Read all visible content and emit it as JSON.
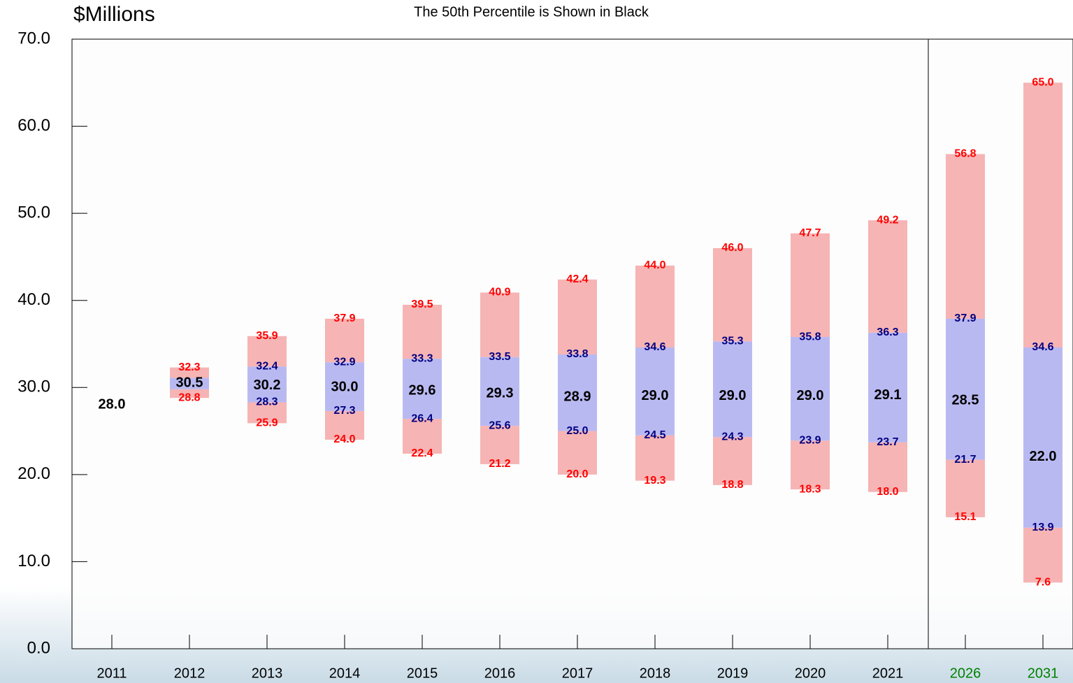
{
  "chart_data": {
    "type": "percentile_band",
    "subtitle": "The 50th Percentile is Shown in Black",
    "y_label": "$Millions",
    "categories": [
      "2011",
      "2012",
      "2013",
      "2014",
      "2015",
      "2016",
      "2017",
      "2018",
      "2019",
      "2020",
      "2021",
      "2026",
      "2031"
    ],
    "category_colors": [
      "#000000",
      "#000000",
      "#000000",
      "#000000",
      "#000000",
      "#000000",
      "#000000",
      "#000000",
      "#000000",
      "#000000",
      "#000000",
      "#008000",
      "#008000"
    ],
    "ylim": [
      0,
      70
    ],
    "yticks": [
      {
        "value": 0,
        "label": "0.0"
      },
      {
        "value": 10,
        "label": "10.0"
      },
      {
        "value": 20,
        "label": "20.0"
      },
      {
        "value": 30,
        "label": "30.0"
      },
      {
        "value": 40,
        "label": "40.0"
      },
      {
        "value": 50,
        "label": "50.0"
      },
      {
        "value": 60,
        "label": "60.0"
      },
      {
        "value": 70,
        "label": "70.0"
      }
    ],
    "series": [
      {
        "color": "#ff0000",
        "band_color": "#f6b4b4",
        "values": [
          null,
          28.8,
          25.9,
          24.0,
          22.4,
          21.2,
          20.0,
          19.3,
          18.8,
          18.3,
          18.0,
          15.1,
          7.6
        ],
        "value_labels": [
          null,
          "28.8",
          "25.9",
          "24.0",
          "22.4",
          "21.2",
          "20.0",
          "19.3",
          "18.8",
          "18.3",
          "18.0",
          "15.1",
          "7.6"
        ]
      },
      {
        "color": "#000080",
        "band_color": "#b9b9f2",
        "values": [
          null,
          29.8,
          28.3,
          27.3,
          26.4,
          25.6,
          25.0,
          24.5,
          24.3,
          23.9,
          23.7,
          21.7,
          13.9
        ],
        "value_labels": [
          null,
          null,
          "28.3",
          "27.3",
          "26.4",
          "25.6",
          "25.0",
          "24.5",
          "24.3",
          "23.9",
          "23.7",
          "21.7",
          "13.9"
        ]
      },
      {
        "color": "#000000",
        "values": [
          28.0,
          30.5,
          30.2,
          30.0,
          29.6,
          29.3,
          28.9,
          29.0,
          29.0,
          29.0,
          29.1,
          28.5,
          22.0
        ],
        "value_labels": [
          "28.0",
          "30.5",
          "30.2",
          "30.0",
          "29.6",
          "29.3",
          "28.9",
          "29.0",
          "29.0",
          "29.0",
          "29.1",
          "28.5",
          "22.0"
        ]
      },
      {
        "color": "#000080",
        "band_color": "#b9b9f2",
        "values": [
          null,
          31.1,
          32.4,
          32.9,
          33.3,
          33.5,
          33.8,
          34.6,
          35.3,
          35.8,
          36.3,
          37.9,
          34.6
        ],
        "value_labels": [
          null,
          null,
          "32.4",
          "32.9",
          "33.3",
          "33.5",
          "33.8",
          "34.6",
          "35.3",
          "35.8",
          "36.3",
          "37.9",
          "34.6"
        ]
      },
      {
        "color": "#ff0000",
        "band_color": "#f6b4b4",
        "values": [
          null,
          32.3,
          35.9,
          37.9,
          39.5,
          40.9,
          42.4,
          44.0,
          46.0,
          47.7,
          49.2,
          56.8,
          65.0
        ],
        "value_labels": [
          null,
          "32.3",
          "35.9",
          "37.9",
          "39.5",
          "40.9",
          "42.4",
          "44.0",
          "46.0",
          "47.7",
          "49.2",
          "56.8",
          "65.0"
        ]
      }
    ]
  }
}
